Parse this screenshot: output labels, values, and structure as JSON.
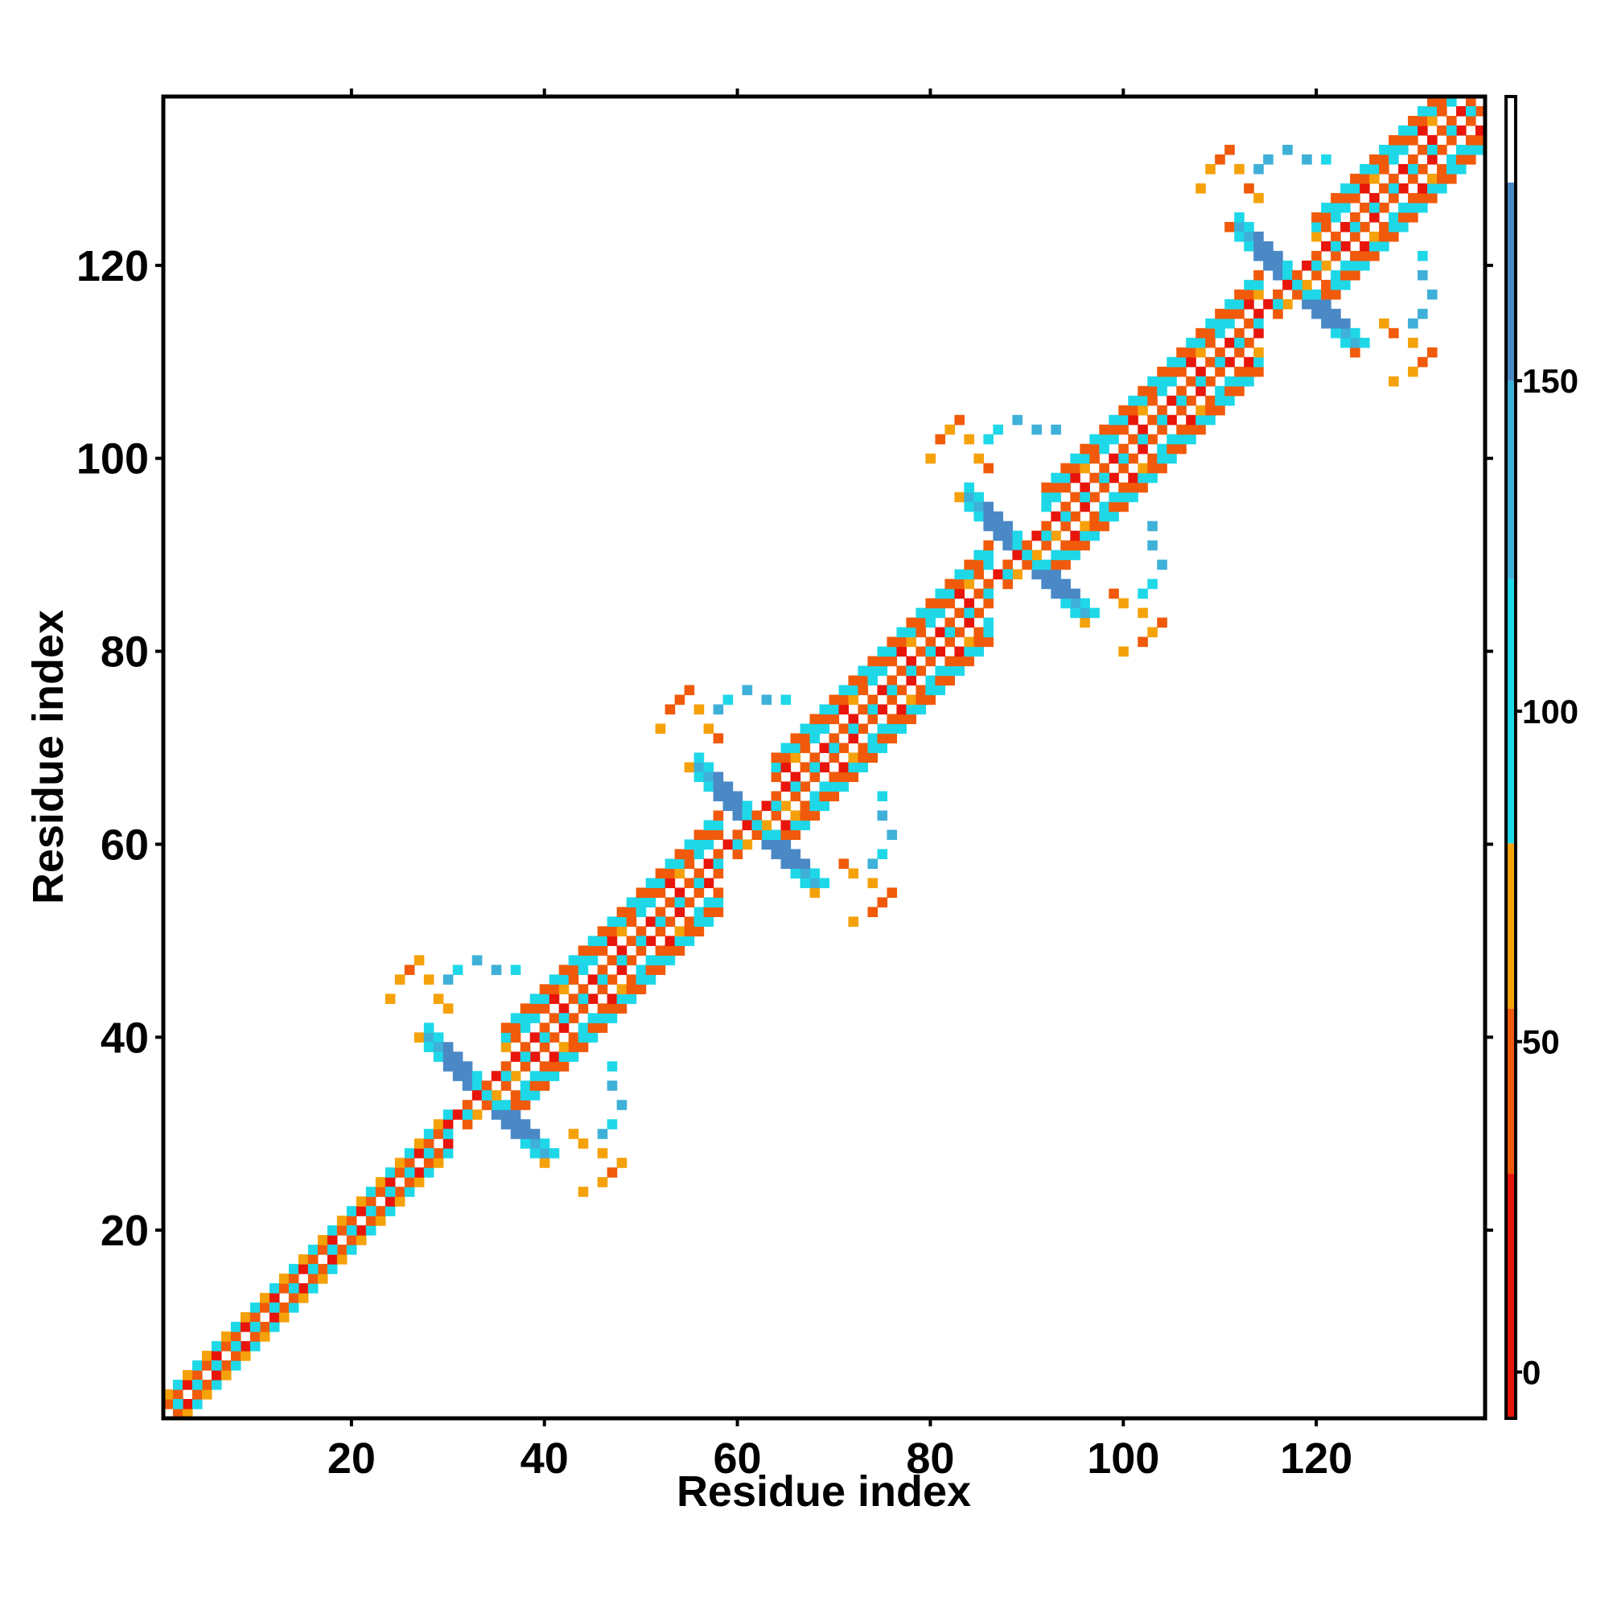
{
  "chart_data": {
    "type": "heatmap",
    "xlabel": "Residue index",
    "ylabel": "Residue index",
    "xlim": [
      1,
      137
    ],
    "ylim": [
      1,
      137
    ],
    "x_ticks": [
      20,
      40,
      60,
      80,
      100,
      120
    ],
    "y_ticks": [
      20,
      40,
      60,
      80,
      100,
      120
    ],
    "colorbar": {
      "ticks": [
        0,
        50,
        100,
        150
      ],
      "range": [
        -7,
        193
      ],
      "bands": [
        {
          "from": -7,
          "to": 30,
          "color": "#e8150b"
        },
        {
          "from": 30,
          "to": 55,
          "color": "#f05a0a"
        },
        {
          "from": 55,
          "to": 80,
          "color": "#f5a10a"
        },
        {
          "from": 80,
          "to": 120,
          "color": "#1ed8e8"
        },
        {
          "from": 120,
          "to": 150,
          "color": "#3fb0d8"
        },
        {
          "from": 150,
          "to": 180,
          "color": "#4a88c6"
        },
        {
          "from": 180,
          "to": 193,
          "color": "#ffffff"
        }
      ]
    },
    "legend_placement": "right",
    "grid": false,
    "diagonal_pattern_colors": [
      "#1ed8e8",
      "#f05a0a",
      "#e8150b",
      "#f5a10a",
      "#f05a0a",
      "#1ed8e8"
    ],
    "cross_centers": [
      34,
      62,
      90,
      118
    ],
    "segments": [
      {
        "start": 1,
        "end": 30,
        "offsets": [
          -2,
          -1,
          1,
          2
        ]
      },
      {
        "start": 36,
        "end": 58,
        "offsets": [
          -5,
          -4,
          -3,
          -1,
          1,
          3,
          4,
          5
        ]
      },
      {
        "start": 64,
        "end": 86,
        "offsets": [
          -5,
          -4,
          -3,
          -1,
          1,
          3,
          4,
          5
        ]
      },
      {
        "start": 92,
        "end": 114,
        "offsets": [
          -5,
          -4,
          -3,
          -1,
          1,
          3,
          4,
          5
        ]
      },
      {
        "start": 120,
        "end": 137,
        "offsets": [
          -5,
          -4,
          -3,
          -1,
          1,
          3,
          4,
          5
        ]
      }
    ]
  }
}
